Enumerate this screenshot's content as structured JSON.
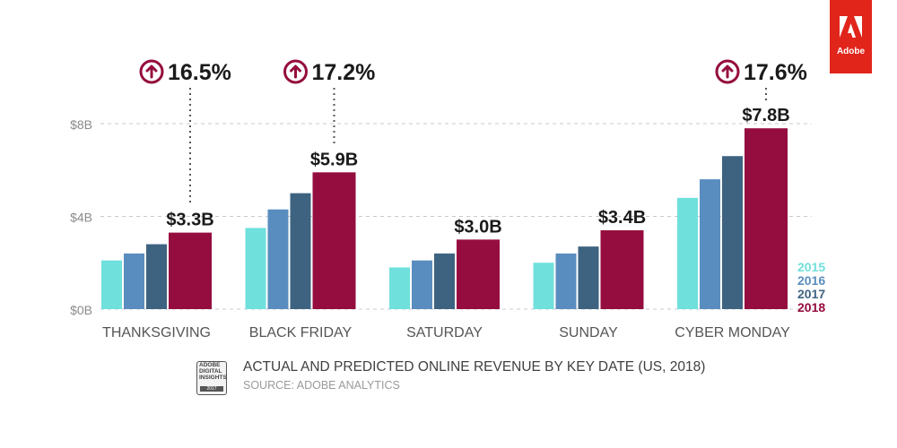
{
  "chart_data": {
    "type": "bar",
    "title": "ACTUAL AND PREDICTED ONLINE REVENUE BY KEY DATE (US, 2018)",
    "source": "SOURCE: ADOBE ANALYTICS",
    "categories": [
      "THANKSGIVING",
      "BLACK FRIDAY",
      "SATURDAY",
      "SUNDAY",
      "CYBER MONDAY"
    ],
    "series": [
      {
        "name": "2015",
        "color": "#6fe0dc",
        "values": [
          2.1,
          3.5,
          1.8,
          2.0,
          4.8
        ]
      },
      {
        "name": "2016",
        "color": "#5a8dbf",
        "values": [
          2.4,
          4.3,
          2.1,
          2.4,
          5.6
        ]
      },
      {
        "name": "2017",
        "color": "#3e6381",
        "values": [
          2.8,
          5.0,
          2.4,
          2.7,
          6.6
        ]
      },
      {
        "name": "2018",
        "color": "#950d3e",
        "values": [
          3.3,
          5.9,
          3.0,
          3.4,
          7.8
        ]
      }
    ],
    "value_labels": [
      "$3.3B",
      "$5.9B",
      "$3.0B",
      "$3.4B",
      "$7.8B"
    ],
    "growth_callouts": [
      {
        "category": "THANKSGIVING",
        "label": "16.5%"
      },
      {
        "category": "BLACK FRIDAY",
        "label": "17.2%"
      },
      {
        "category": "CYBER MONDAY",
        "label": "17.6%"
      }
    ],
    "y_ticks": [
      {
        "value": 0,
        "label": "$0B"
      },
      {
        "value": 4,
        "label": "$4B"
      },
      {
        "value": 8,
        "label": "$8B"
      }
    ],
    "ylim": [
      0,
      8
    ],
    "grid": true,
    "legend_position": "bottom-right"
  },
  "brand": {
    "name": "Adobe",
    "color": "#e1251b"
  },
  "footer": {
    "badge_lines": [
      "ADOBE",
      "DIGITAL",
      "INSIGHTS"
    ],
    "badge_year": "2017"
  }
}
